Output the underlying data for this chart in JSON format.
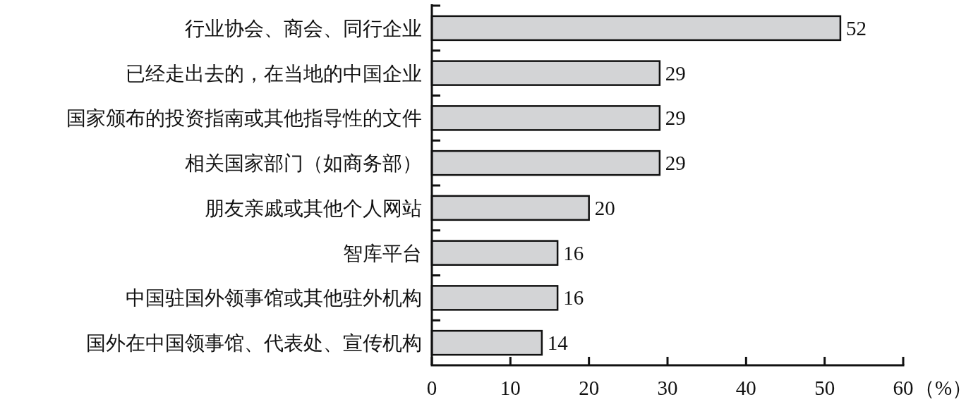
{
  "chart_data": {
    "type": "bar",
    "orientation": "horizontal",
    "categories": [
      "行业协会、商会、同行企业",
      "已经走出去的，在当地的中国企业",
      "国家颁布的投资指南或其他指导性的文件",
      "相关国家部门（如商务部）",
      "朋友亲戚或其他个人网站",
      "智库平台",
      "中国驻国外领事馆或其他驻外机构",
      "国外在中国领事馆、代表处、宣传机构"
    ],
    "values": [
      52,
      29,
      29,
      29,
      20,
      16,
      16,
      14
    ],
    "color": "#d3d4d6",
    "xlim": [
      0,
      60
    ],
    "xticks": [
      0,
      10,
      20,
      30,
      40,
      50,
      60
    ],
    "xlabel": "（%）",
    "data_labels": true,
    "grid": false
  }
}
